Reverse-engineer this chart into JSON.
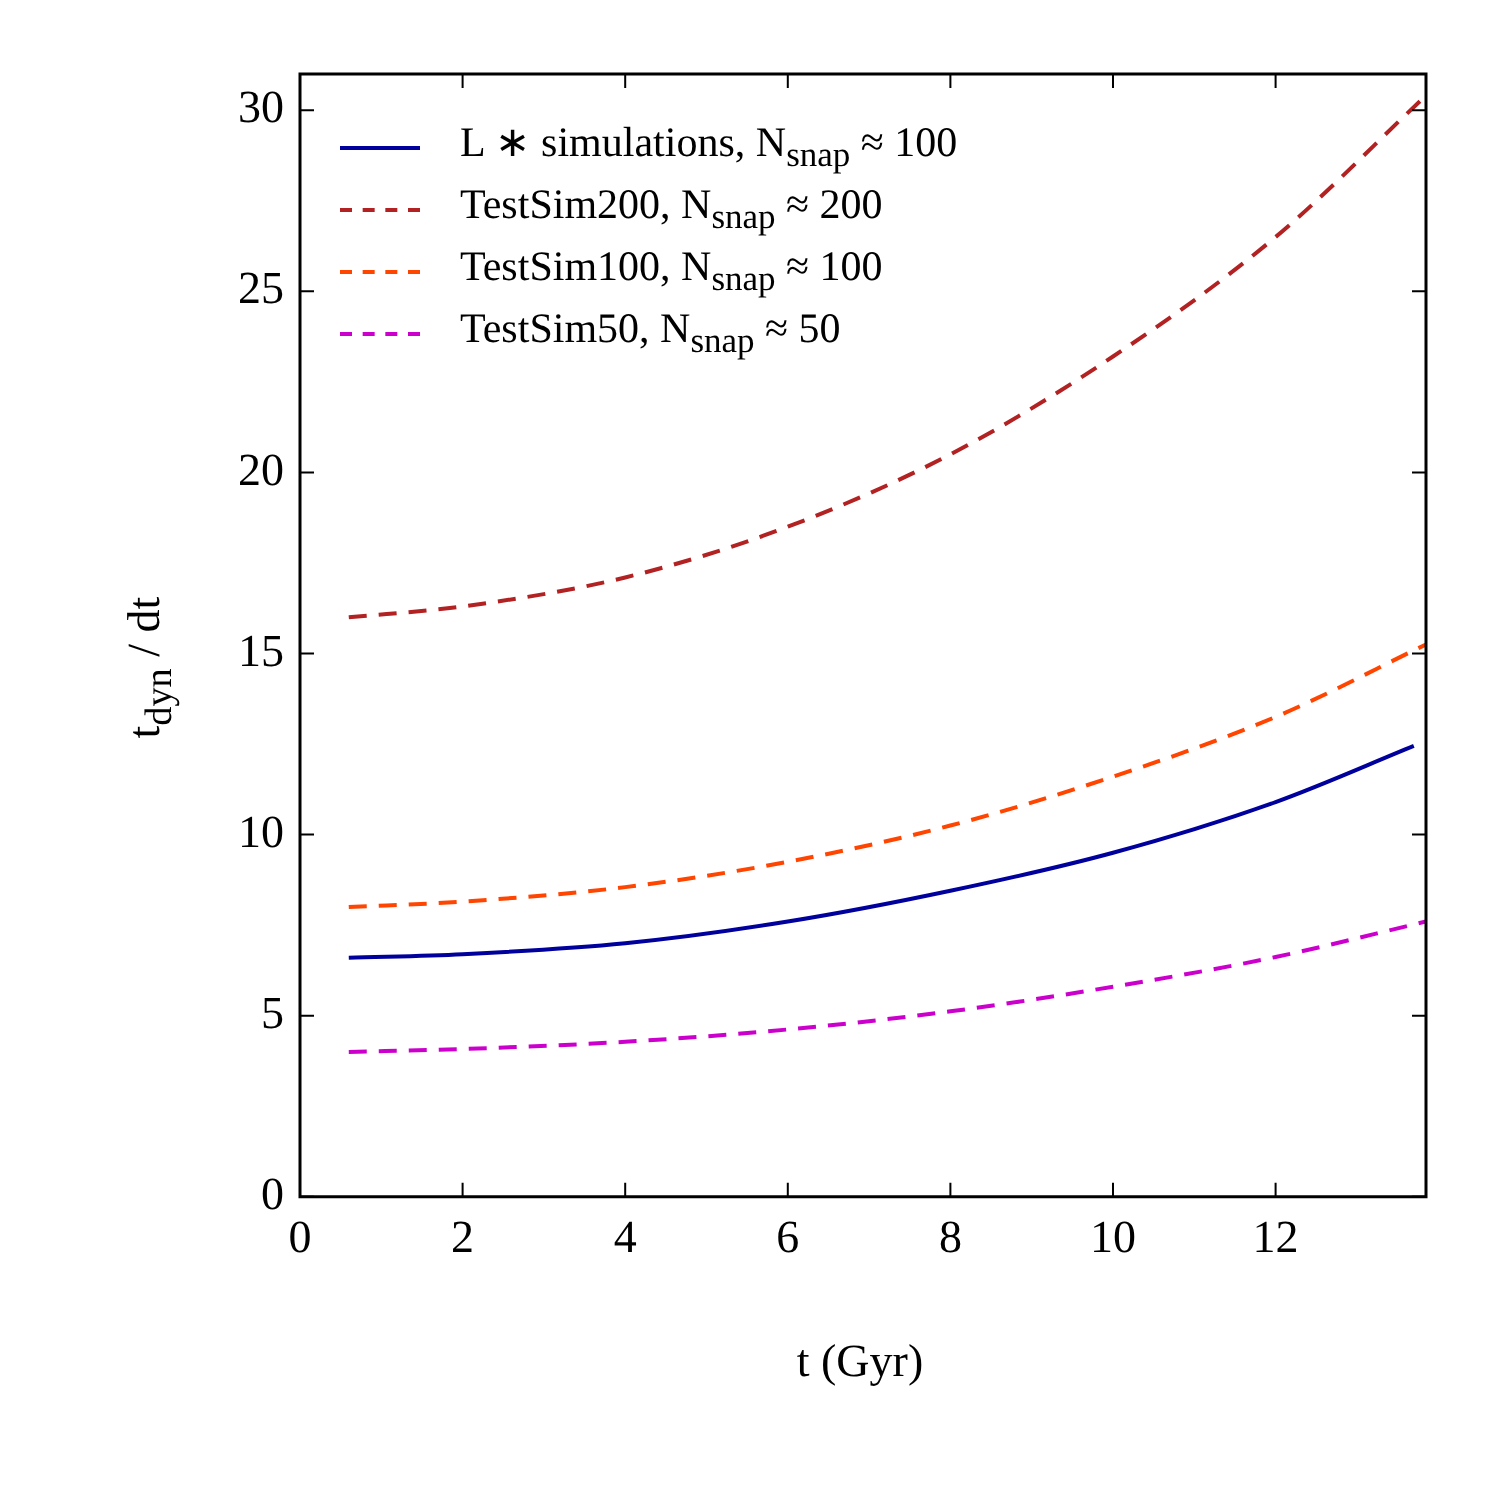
{
  "chart_data": {
    "type": "line",
    "xlabel": "t (Gyr)",
    "ylabel": "t$_{dyn}$ / dt",
    "xlim": [
      0,
      13.85
    ],
    "ylim": [
      0,
      31
    ],
    "xticks": [
      0,
      2,
      4,
      6,
      8,
      10,
      12
    ],
    "yticks": [
      0,
      5,
      10,
      15,
      20,
      25,
      30
    ],
    "grid": false,
    "legend": "top left",
    "marker": "none",
    "series": [
      {
        "name": "L ∗ simulations, N$_{snap}$ ≈ 100",
        "color": "#00009c",
        "line_style": "solid",
        "x": [
          0.6,
          2,
          4,
          6,
          8,
          10,
          12,
          13.7
        ],
        "values": [
          6.6,
          6.7,
          7.0,
          7.6,
          8.45,
          9.5,
          10.9,
          12.45
        ]
      },
      {
        "name": "TestSim200, N$_{snap}$ ≈ 200",
        "color": "#b22222",
        "line_style": "dashed",
        "x": [
          0.6,
          2,
          4,
          6,
          8,
          10,
          12,
          13.8
        ],
        "values": [
          16.0,
          16.3,
          17.1,
          18.5,
          20.5,
          23.2,
          26.5,
          30.3
        ]
      },
      {
        "name": "TestSim100, N$_{snap}$ ≈ 100",
        "color": "#ff4500",
        "line_style": "dashed",
        "x": [
          0.6,
          2,
          4,
          6,
          8,
          10,
          12,
          13.85
        ],
        "values": [
          8.0,
          8.15,
          8.55,
          9.25,
          10.25,
          11.6,
          13.25,
          15.25
        ]
      },
      {
        "name": "TestSim50, N$_{snap}$ ≈ 50",
        "color": "#cc00cc",
        "line_style": "dashed",
        "x": [
          0.6,
          2,
          4,
          6,
          8,
          10,
          12,
          13.85
        ],
        "values": [
          4.0,
          4.08,
          4.28,
          4.62,
          5.12,
          5.8,
          6.62,
          7.6
        ]
      }
    ]
  }
}
